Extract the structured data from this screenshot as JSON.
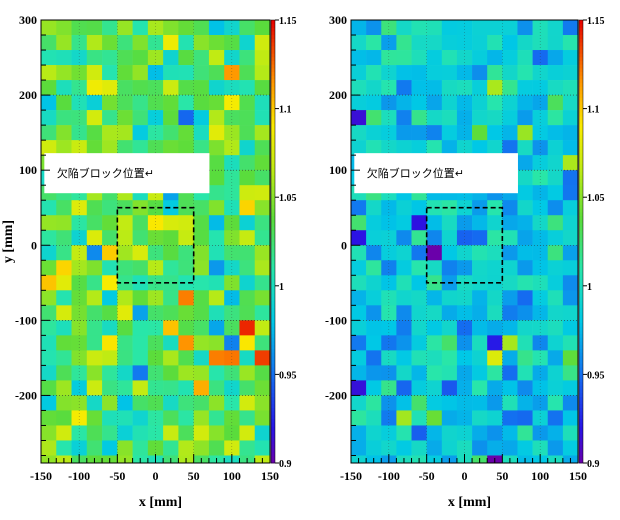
{
  "chart_data": [
    {
      "type": "heatmap",
      "title": "",
      "xlabel": "x [mm]",
      "ylabel": "y [mm]",
      "xlim": [
        -150,
        150
      ],
      "ylim": [
        -290,
        300
      ],
      "x_ticks": [
        "-150",
        "-100",
        "-50",
        "0",
        "50",
        "100",
        "150"
      ],
      "y_ticks": [
        "300",
        "200",
        "100",
        "0",
        "-100",
        "-200"
      ],
      "colorbar": {
        "min": 0.9,
        "max": 1.15,
        "ticks": [
          "1.15",
          "1.1",
          "1.05",
          "1",
          "0.95",
          "0.9"
        ],
        "palette": "rainbow"
      },
      "cells": {
        "nx": 15,
        "ny": 30,
        "x_step": 20,
        "y_step": 20,
        "typical_value": 1.03
      },
      "grid_dotted_y": [
        -200,
        -100,
        0,
        100,
        200
      ],
      "defect_box": {
        "x": [
          -50,
          50
        ],
        "y": [
          -50,
          50
        ]
      },
      "annotation": "欠陥ブロック位置↵"
    },
    {
      "type": "heatmap",
      "title": "",
      "xlabel": "x [mm]",
      "ylabel": "",
      "xlim": [
        -150,
        150
      ],
      "ylim": [
        -290,
        300
      ],
      "x_ticks": [
        "-150",
        "-100",
        "-50",
        "0",
        "50",
        "100",
        "150"
      ],
      "y_ticks": [
        "300",
        "200",
        "100",
        "0",
        "-100",
        "-200"
      ],
      "colorbar": {
        "min": 0.9,
        "max": 1.15,
        "ticks": [
          "1.15",
          "1.1",
          "1.05",
          "1",
          "0.95",
          "0.9"
        ],
        "palette": "rainbow"
      },
      "cells": {
        "nx": 15,
        "ny": 30,
        "x_step": 20,
        "y_step": 20,
        "typical_value": 0.985
      },
      "grid_dotted_y": [
        -200,
        -100,
        0,
        100,
        200
      ],
      "defect_box": {
        "x": [
          -50,
          50
        ],
        "y": [
          -50,
          50
        ]
      },
      "annotation": "欠陥ブロック位置↵"
    }
  ]
}
